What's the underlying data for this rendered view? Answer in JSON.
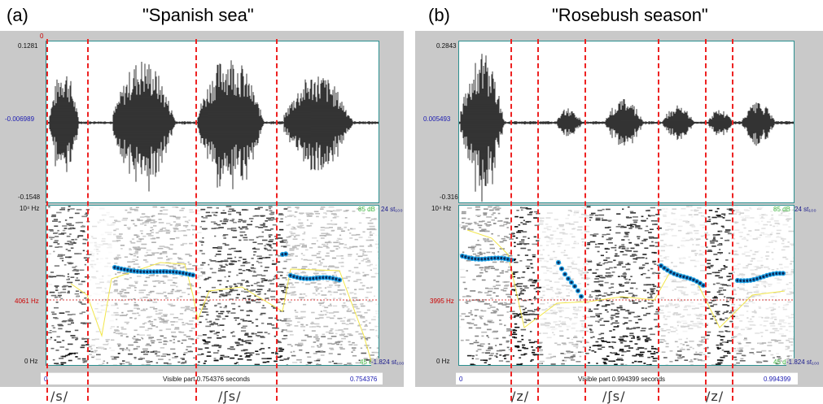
{
  "panels": [
    {
      "label": "(a)",
      "title": "\"Spanish sea\"",
      "top_marker": "0",
      "wave": {
        "max": "0.1281",
        "mid": "-0.006989",
        "min": "-0.1548"
      },
      "spec": {
        "top": "10⁴ Hz",
        "ref": "4061 Hz",
        "bottom": "0 Hz",
        "db_top": "85 dB",
        "st_top": "24 st₁₀₀",
        "db_bottom": "45 dB",
        "st_bottom": "-1.824 st₁₀₀"
      },
      "time_start": "0",
      "visible_text": "Visible part 0.754376 seconds",
      "time_end": "0.754376",
      "phonemes": [
        "/s/",
        "/ʃs/"
      ]
    },
    {
      "label": "(b)",
      "title": "\"Rosebush season\"",
      "top_marker": "",
      "wave": {
        "max": "0.2843",
        "mid": "0.005493",
        "min": "-0.316"
      },
      "spec": {
        "top": "10⁴ Hz",
        "ref": "3995 Hz",
        "bottom": "0 Hz",
        "db_top": "85 dB",
        "st_top": "24 st₁₀₀",
        "db_bottom": "45 dB",
        "st_bottom": "-1.824 st₁₀₀"
      },
      "time_start": "0",
      "visible_text": "Visible part 0.994399 seconds",
      "time_end": "0.994399",
      "phonemes": [
        "/z/",
        "/ʃs/",
        "/z/"
      ]
    }
  ],
  "colors": {
    "boundary": "#ee2222",
    "pitch": "#1fa2e6",
    "intensity": "#f2e64a",
    "frame": "#2a8f8f",
    "background": "#c9c9c9"
  }
}
